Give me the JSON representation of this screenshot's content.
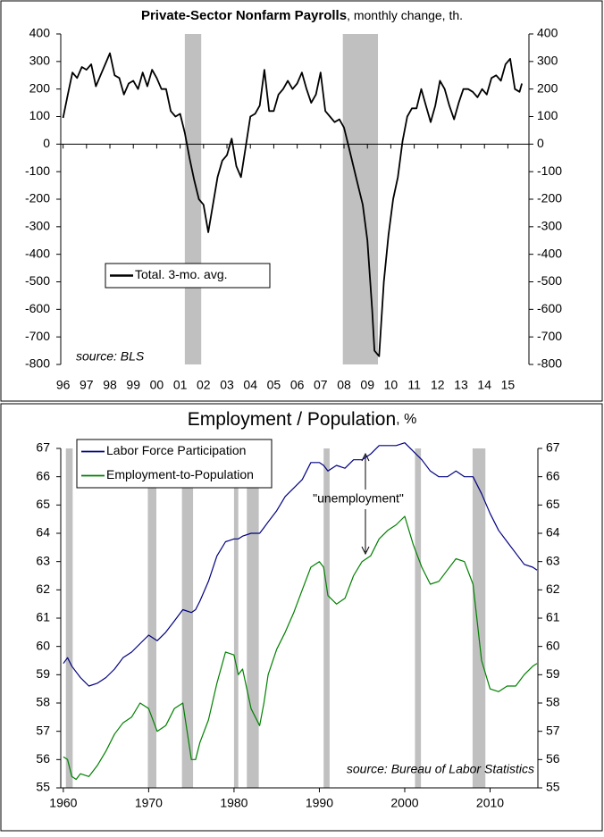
{
  "chart_data": [
    {
      "type": "line",
      "title": "Private-Sector Nonfarm Payrolls",
      "subtitle": ", monthly change, th.",
      "x": [
        1996.0,
        1996.2,
        1996.4,
        1996.6,
        1996.8,
        1997.0,
        1997.2,
        1997.4,
        1997.6,
        1997.8,
        1998.0,
        1998.2,
        1998.4,
        1998.6,
        1998.8,
        1999.0,
        1999.2,
        1999.4,
        1999.6,
        1999.8,
        2000.0,
        2000.2,
        2000.4,
        2000.6,
        2000.8,
        2001.0,
        2001.2,
        2001.4,
        2001.6,
        2001.8,
        2002.0,
        2002.2,
        2002.4,
        2002.6,
        2002.8,
        2003.0,
        2003.2,
        2003.4,
        2003.6,
        2003.8,
        2004.0,
        2004.2,
        2004.4,
        2004.6,
        2004.8,
        2005.0,
        2005.2,
        2005.4,
        2005.6,
        2005.8,
        2006.0,
        2006.2,
        2006.4,
        2006.6,
        2006.8,
        2007.0,
        2007.2,
        2007.4,
        2007.6,
        2007.8,
        2008.0,
        2008.2,
        2008.4,
        2008.6,
        2008.8,
        2009.0,
        2009.2,
        2009.3,
        2009.5,
        2009.7,
        2009.9,
        2010.1,
        2010.3,
        2010.5,
        2010.7,
        2010.9,
        2011.1,
        2011.3,
        2011.5,
        2011.7,
        2011.9,
        2012.1,
        2012.3,
        2012.5,
        2012.7,
        2012.9,
        2013.1,
        2013.3,
        2013.5,
        2013.7,
        2013.9,
        2014.1,
        2014.3,
        2014.5,
        2014.7,
        2014.9,
        2015.1,
        2015.3,
        2015.5,
        2015.6
      ],
      "series": [
        {
          "name": "Total. 3-mo. avg.",
          "color": "#000000",
          "values": [
            95,
            180,
            260,
            240,
            280,
            270,
            290,
            210,
            250,
            290,
            330,
            250,
            240,
            180,
            220,
            230,
            200,
            260,
            210,
            270,
            240,
            200,
            200,
            120,
            100,
            110,
            40,
            -50,
            -130,
            -200,
            -220,
            -320,
            -220,
            -120,
            -60,
            -40,
            20,
            -80,
            -120,
            -10,
            100,
            110,
            140,
            270,
            120,
            120,
            180,
            200,
            230,
            200,
            220,
            260,
            200,
            150,
            180,
            260,
            120,
            100,
            80,
            90,
            60,
            -10,
            -80,
            -150,
            -220,
            -350,
            -600,
            -750,
            -770,
            -500,
            -330,
            -200,
            -120,
            10,
            100,
            130,
            130,
            200,
            140,
            80,
            140,
            230,
            200,
            140,
            90,
            150,
            200,
            200,
            190,
            170,
            200,
            180,
            240,
            250,
            230,
            290,
            310,
            200,
            190,
            220
          ]
        }
      ],
      "recessions": [
        [
          2001.2,
          2001.9
        ],
        [
          2007.95,
          2009.45
        ]
      ],
      "xlim": [
        1995.9,
        2015.9
      ],
      "xticks": [
        {
          "value": 1996,
          "label": "96"
        },
        {
          "value": 1997,
          "label": "97"
        },
        {
          "value": 1998,
          "label": "98"
        },
        {
          "value": 1999,
          "label": "99"
        },
        {
          "value": 2000,
          "label": "00"
        },
        {
          "value": 2001,
          "label": "01"
        },
        {
          "value": 2002,
          "label": "02"
        },
        {
          "value": 2003,
          "label": "03"
        },
        {
          "value": 2004,
          "label": "04"
        },
        {
          "value": 2005,
          "label": "05"
        },
        {
          "value": 2006,
          "label": "06"
        },
        {
          "value": 2007,
          "label": "07"
        },
        {
          "value": 2008,
          "label": "08"
        },
        {
          "value": 2009,
          "label": "09"
        },
        {
          "value": 2010,
          "label": "10"
        },
        {
          "value": 2011,
          "label": "11"
        },
        {
          "value": 2012,
          "label": "12"
        },
        {
          "value": 2013,
          "label": "13"
        },
        {
          "value": 2014,
          "label": "14"
        },
        {
          "value": 2015,
          "label": "15"
        }
      ],
      "ylim": [
        -800,
        400
      ],
      "yticks": [
        -800,
        -700,
        -600,
        -500,
        -400,
        -300,
        -200,
        -100,
        0,
        100,
        200,
        300,
        400
      ],
      "y2lim": [
        -800,
        400
      ],
      "y2ticks": [
        -800,
        -700,
        -600,
        -500,
        -400,
        -300,
        -200,
        -100,
        0,
        100,
        200,
        300,
        400
      ],
      "annotations": [
        {
          "text": "source: BLS"
        }
      ]
    },
    {
      "type": "line",
      "title": "Employment / Population",
      "subtitle": ", %",
      "x": [
        1960,
        1960.5,
        1961,
        1961.5,
        1962,
        1963,
        1964,
        1965,
        1966,
        1967,
        1968,
        1969,
        1970,
        1971,
        1972,
        1973,
        1974,
        1975,
        1975.5,
        1976,
        1977,
        1978,
        1979,
        1980,
        1980.5,
        1981,
        1982,
        1983,
        1983.5,
        1984,
        1985,
        1986,
        1987,
        1988,
        1989,
        1990,
        1990.5,
        1991,
        1992,
        1993,
        1994,
        1995,
        1996,
        1997,
        1998,
        1999,
        2000,
        2001,
        2002,
        2003,
        2004,
        2005,
        2006,
        2007,
        2008,
        2009,
        2010,
        2011,
        2012,
        2013,
        2014,
        2015,
        2015.5
      ],
      "series": [
        {
          "name": "Labor Force Participation",
          "color": "#000080",
          "values": [
            59.4,
            59.6,
            59.3,
            59.1,
            58.9,
            58.6,
            58.7,
            58.9,
            59.2,
            59.6,
            59.8,
            60.1,
            60.4,
            60.2,
            60.5,
            60.9,
            61.3,
            61.2,
            61.3,
            61.6,
            62.3,
            63.2,
            63.7,
            63.8,
            63.8,
            63.9,
            64.0,
            64.0,
            64.2,
            64.4,
            64.8,
            65.3,
            65.6,
            65.9,
            66.5,
            66.5,
            66.4,
            66.2,
            66.4,
            66.3,
            66.6,
            66.6,
            66.8,
            67.1,
            67.1,
            67.1,
            67.2,
            66.9,
            66.6,
            66.2,
            66.0,
            66.0,
            66.2,
            66.0,
            66.0,
            65.4,
            64.7,
            64.1,
            63.7,
            63.3,
            62.9,
            62.8,
            62.7
          ]
        },
        {
          "name": "Employment-to-Population",
          "color": "#008000",
          "values": [
            56.1,
            56.0,
            55.4,
            55.3,
            55.5,
            55.4,
            55.8,
            56.3,
            56.9,
            57.3,
            57.5,
            58.0,
            57.8,
            57.0,
            57.2,
            57.8,
            58.0,
            56.0,
            56.0,
            56.6,
            57.4,
            58.7,
            59.8,
            59.7,
            59.0,
            59.2,
            57.8,
            57.2,
            58.0,
            59.0,
            59.9,
            60.5,
            61.2,
            62.0,
            62.8,
            63.0,
            62.8,
            61.8,
            61.5,
            61.7,
            62.5,
            63.0,
            63.2,
            63.8,
            64.1,
            64.3,
            64.6,
            63.6,
            62.8,
            62.2,
            62.3,
            62.7,
            63.1,
            63.0,
            62.2,
            59.5,
            58.5,
            58.4,
            58.6,
            58.6,
            59.0,
            59.3,
            59.4
          ]
        }
      ],
      "recessions": [
        [
          1960.3,
          1961.1
        ],
        [
          1969.9,
          1970.9
        ],
        [
          1973.9,
          1975.2
        ],
        [
          1980.0,
          1980.5
        ],
        [
          1981.5,
          1982.9
        ],
        [
          1990.5,
          1991.2
        ],
        [
          2001.2,
          2001.9
        ],
        [
          2007.95,
          2009.45
        ]
      ],
      "xlim": [
        1959.7,
        2015.6
      ],
      "xticks": [
        1960,
        1970,
        1980,
        1990,
        2000,
        2010
      ],
      "ylim": [
        55,
        67
      ],
      "yticks": [
        55,
        56,
        57,
        58,
        59,
        60,
        61,
        62,
        63,
        64,
        65,
        66,
        67
      ],
      "y2lim": [
        55,
        67
      ],
      "y2ticks": [
        55,
        56,
        57,
        58,
        59,
        60,
        61,
        62,
        63,
        64,
        65,
        66,
        67
      ],
      "annotations": [
        {
          "text": "source: Bureau of Labor Statistics"
        },
        {
          "text": "\"unemployment\""
        }
      ]
    }
  ]
}
